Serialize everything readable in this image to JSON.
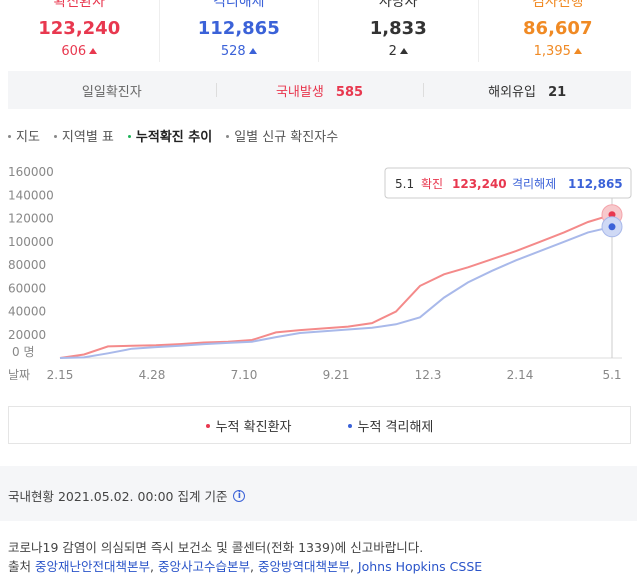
{
  "stats": [
    {
      "label": "확진환자",
      "value": "123,240",
      "delta": "606",
      "color": "#e8384f"
    },
    {
      "label": "격리해제",
      "value": "112,865",
      "delta": "528",
      "color": "#3b62d8"
    },
    {
      "label": "사망자",
      "value": "1,833",
      "delta": "2",
      "color": "#333333"
    },
    {
      "label": "검사진행",
      "value": "86,607",
      "delta": "1,395",
      "color": "#f08a24"
    }
  ],
  "daily": {
    "title": "일일확진자",
    "domestic_label": "국내발생",
    "domestic_value": "585",
    "overseas_label": "해외유입",
    "overseas_value": "21"
  },
  "tabs": [
    {
      "label": "지도",
      "active": false
    },
    {
      "label": "지역별 표",
      "active": false
    },
    {
      "label": "누적확진 추이",
      "active": true
    },
    {
      "label": "일별 신규 확진자수",
      "active": false
    }
  ],
  "chart_data": {
    "type": "line",
    "x_unit_label": "날짜",
    "y_zero_label": "0 명",
    "y_ticks": [
      160000,
      140000,
      120000,
      100000,
      80000,
      60000,
      40000,
      20000
    ],
    "ylim": [
      0,
      160000
    ],
    "x_ticks": [
      "2.15",
      "4.28",
      "7.10",
      "9.21",
      "12.3",
      "2.14",
      "5.1"
    ],
    "tooltip": {
      "date": "5.1",
      "confirmed_label": "확진",
      "confirmed_value": "123,240",
      "released_label": "격리해제",
      "released_value": "112,865"
    },
    "series": [
      {
        "name": "누적 확진환자",
        "color": "#f48a8a",
        "values": [
          30,
          3000,
          10000,
          10600,
          11000,
          12000,
          13300,
          14000,
          15500,
          22000,
          24000,
          25500,
          27000,
          30000,
          40000,
          62000,
          72000,
          78000,
          85000,
          92000,
          100000,
          108000,
          117000,
          123240
        ]
      },
      {
        "name": "누적 격리해제",
        "color": "#a9b9ea",
        "values": [
          20,
          500,
          4000,
          8000,
          9400,
          10500,
          12000,
          13000,
          14000,
          18000,
          21500,
          23000,
          24500,
          26000,
          29000,
          35000,
          52000,
          65000,
          75000,
          84000,
          92000,
          100000,
          108000,
          112865
        ]
      }
    ]
  },
  "legend": [
    {
      "label": "누적 확진환자",
      "color": "#e8384f"
    },
    {
      "label": "누적 격리해제",
      "color": "#3b62d8"
    }
  ],
  "asof": "국내현황 2021.05.02. 00:00 집계 기준",
  "info_glyph": "i",
  "notice": "코로나19 감염이 의심되면 즉시 보건소 및 콜센터(전화 1339)에 신고바랍니다.",
  "sources_prefix": "출처",
  "sources": [
    "중앙재난안전대책본부",
    "중앙사고수습본부",
    "중앙방역대책본부",
    "Johns Hopkins CSSE"
  ]
}
